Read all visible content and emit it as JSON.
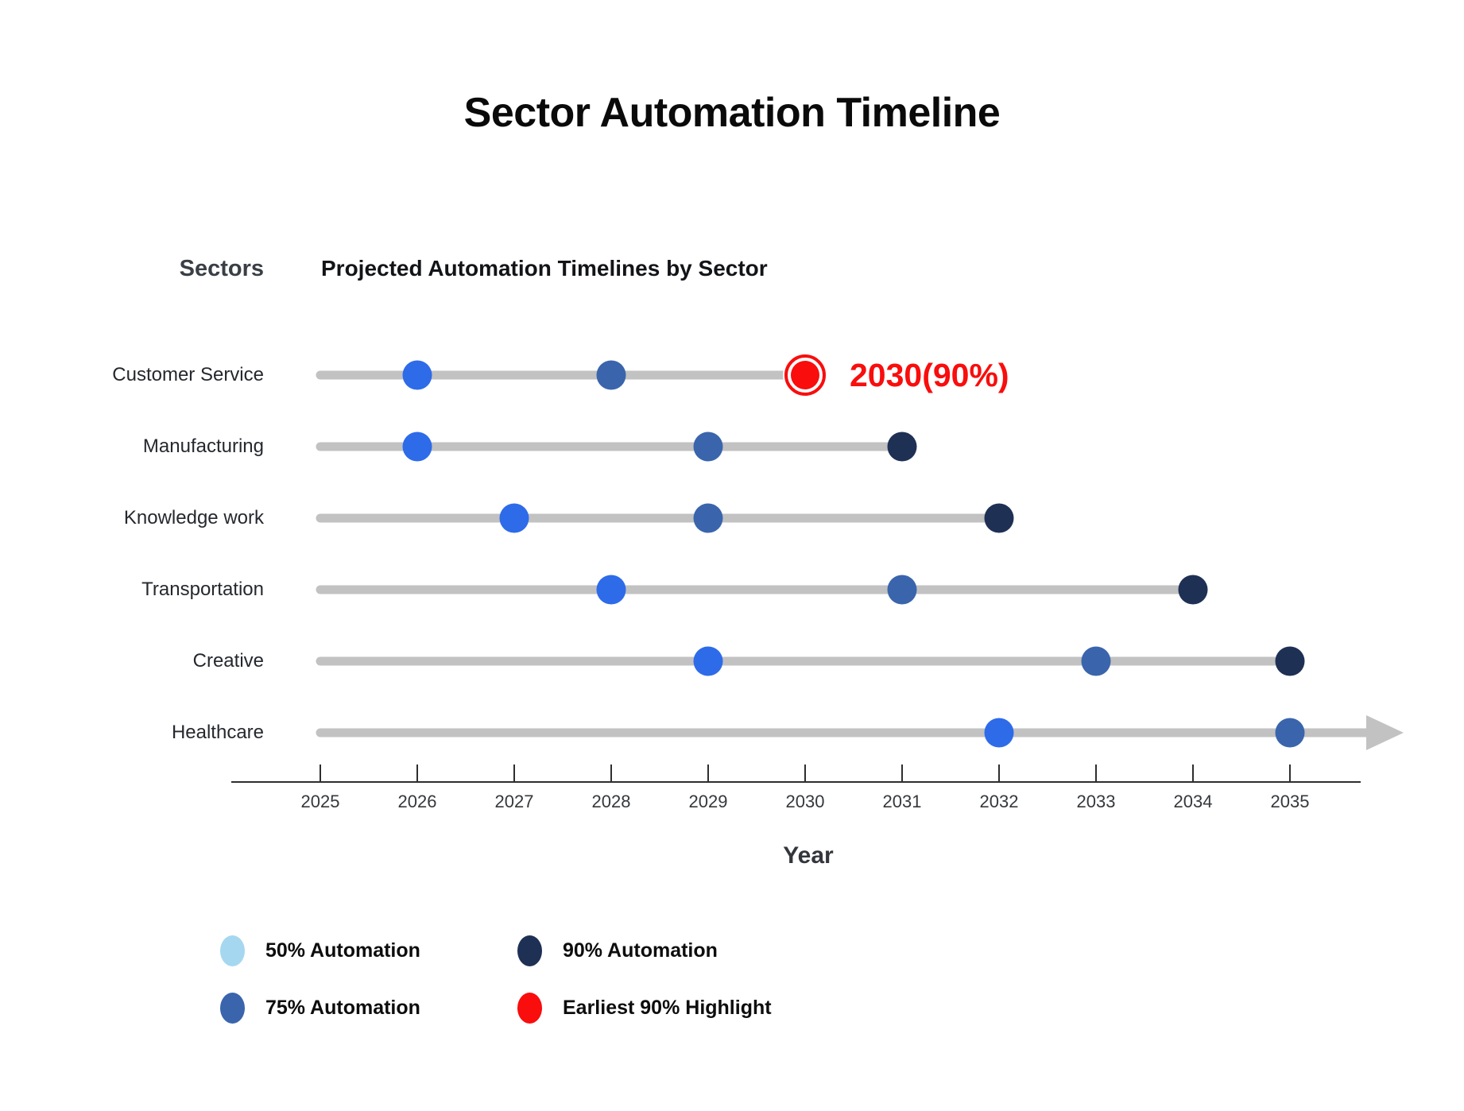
{
  "title": "Sector Automation Timeline",
  "chart_data": {
    "type": "scatter",
    "title": "Projected Automation Timelines by Sector",
    "xlabel": "Year",
    "ylabel": "Sectors",
    "x_ticks": [
      2025,
      2026,
      2027,
      2028,
      2029,
      2030,
      2031,
      2032,
      2033,
      2034,
      2035
    ],
    "xlim": [
      2025,
      2035.8
    ],
    "grid": false,
    "legend_position": "bottom",
    "categories": [
      "Customer Service",
      "Manufacturing",
      "Knowledge work",
      "Transportation",
      "Creative",
      "Healthcare"
    ],
    "series": [
      {
        "name": "50% Automation",
        "color": "#2E6BE9",
        "values": [
          2026,
          2026,
          2027,
          2028,
          2029,
          2032
        ]
      },
      {
        "name": "75% Automation",
        "color": "#3A65AC",
        "values": [
          2028,
          2029,
          2029,
          2031,
          2033,
          2035
        ]
      },
      {
        "name": "90% Automation",
        "color": "#1F3055",
        "values": [
          2030,
          2031,
          2032,
          2034,
          2035,
          null
        ]
      }
    ],
    "open_ended_rows": [
      "Healthcare"
    ],
    "highlight": {
      "sector": "Customer Service",
      "year": 2030,
      "label": "2030(90%)",
      "color": "#F90D0D"
    },
    "track_color": "#C2C2C2",
    "axis_color": "#2e2e2e"
  },
  "legend": {
    "items": [
      {
        "label": "50% Automation",
        "color": "#A5D8F0"
      },
      {
        "label": "75% Automation",
        "color": "#3A65AC"
      },
      {
        "label": "90% Automation",
        "color": "#1F3055"
      },
      {
        "label": "Earliest 90% Highlight",
        "color": "#F90D0D"
      }
    ]
  }
}
